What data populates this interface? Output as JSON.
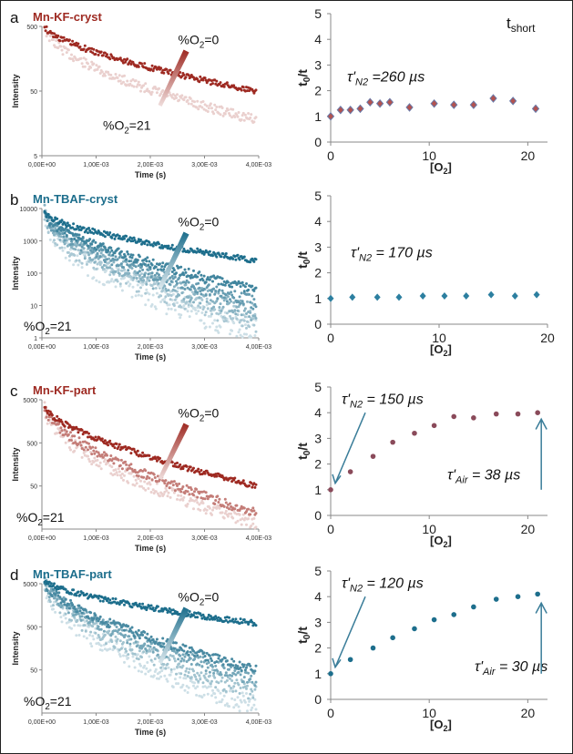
{
  "figure": {
    "panels": [
      {
        "letter": "a",
        "title": "Mn-KF-cryst",
        "color": "#9e2a22"
      },
      {
        "letter": "b",
        "title": "Mn-TBAF-cryst",
        "color": "#1d6e8c"
      },
      {
        "letter": "c",
        "title": "Mn-KF-part",
        "color": "#9e2a22"
      },
      {
        "letter": "d",
        "title": "Mn-TBAF-part",
        "color": "#1d6e8c"
      }
    ],
    "tshort_label": {
      "main": "t",
      "sub": "short"
    }
  },
  "chart_data": [
    {
      "type": "scatter",
      "panel": "a",
      "kind": "decay",
      "title": "Mn-KF-cryst",
      "xlabel": "Time (s)",
      "ylabel": "Intensity",
      "xticks": [
        "0,00E+00",
        "1,00E-03",
        "2,00E-03",
        "3,00E-03",
        "4,00E-03"
      ],
      "yticks": [
        "500",
        "50",
        "5"
      ],
      "log_min": 0.699,
      "log_max": 2.699,
      "annotation_top": "%O2=0",
      "annotation_bottom": "%O2=21",
      "curves": [
        {
          "name": "%O2=0",
          "start": 500,
          "end": 50
        },
        {
          "name": "%O2=21",
          "start": 520,
          "end": 18
        }
      ]
    },
    {
      "type": "scatter",
      "panel": "a",
      "kind": "ratio",
      "xlabel": "[O2]",
      "ylabel": "t0/t",
      "xlim": [
        0,
        22
      ],
      "ylim": [
        0,
        5
      ],
      "xticks": [
        0,
        10,
        20
      ],
      "yticks": [
        0,
        1,
        2,
        3,
        4,
        5
      ],
      "annotation": {
        "tau": "τ'",
        "sub": "N2",
        "value": " =260 µs"
      },
      "x": [
        0,
        1,
        2,
        3,
        4,
        5,
        6,
        8,
        10.5,
        12.5,
        14.5,
        16.5,
        18.5,
        20.8
      ],
      "y": [
        1.0,
        1.25,
        1.25,
        1.3,
        1.55,
        1.5,
        1.55,
        1.35,
        1.5,
        1.45,
        1.45,
        1.7,
        1.6,
        1.3
      ]
    },
    {
      "type": "scatter",
      "panel": "b",
      "kind": "decay",
      "title": "Mn-TBAF-cryst",
      "xlabel": "Time (s)",
      "ylabel": "Intensity",
      "xticks": [
        "0,00E+00",
        "1,00E-03",
        "2,00E-03",
        "3,00E-03",
        "4,00E-03"
      ],
      "yticks": [
        "10000",
        "1000",
        "100",
        "10",
        "1"
      ],
      "log_min": 0,
      "log_max": 4,
      "annotation_top": "%O2=0",
      "annotation_bottom": "%O2=21",
      "curves": [
        {
          "name": "%O2=0",
          "start": 7000,
          "end": 250
        },
        {
          "name": "curve-2",
          "start": 7000,
          "end": 30
        },
        {
          "name": "curve-3",
          "start": 7000,
          "end": 12
        },
        {
          "name": "curve-4",
          "start": 7000,
          "end": 6
        },
        {
          "name": "curve-5",
          "start": 7000,
          "end": 3
        },
        {
          "name": "%O2=21",
          "start": 7000,
          "end": 1.5
        }
      ]
    },
    {
      "type": "scatter",
      "panel": "b",
      "kind": "ratio",
      "xlabel": "[O2]",
      "ylabel": "t0/t",
      "xlim": [
        0,
        20
      ],
      "ylim": [
        0,
        5
      ],
      "xticks": [
        0,
        10,
        20
      ],
      "yticks": [
        0,
        1,
        2,
        3,
        4,
        5
      ],
      "annotation": {
        "tau": "τ'",
        "sub": "N2",
        "value": " = 170 µs"
      },
      "x": [
        0,
        2,
        4.3,
        6.3,
        8.5,
        10.5,
        12.5,
        14.8,
        17,
        19
      ],
      "y": [
        1.0,
        1.05,
        1.05,
        1.05,
        1.1,
        1.1,
        1.1,
        1.15,
        1.1,
        1.15
      ]
    },
    {
      "type": "scatter",
      "panel": "c",
      "kind": "decay",
      "title": "Mn-KF-part",
      "xlabel": "Time (s)",
      "ylabel": "Intensity",
      "xticks": [
        "0,00E+00",
        "1,00E-03",
        "2,00E-03",
        "3,00E-03",
        "4,00E-03"
      ],
      "yticks": [
        "5000",
        "500",
        "50"
      ],
      "log_min": 0.699,
      "log_max": 3.699,
      "annotation_top": "%O2=0",
      "annotation_bottom": "%O2=21",
      "curves": [
        {
          "name": "%O2=0",
          "start": 3500,
          "end": 50
        },
        {
          "name": "curve-2",
          "start": 3500,
          "end": 12
        },
        {
          "name": "%O2=21",
          "start": 3500,
          "end": 7
        }
      ]
    },
    {
      "type": "scatter",
      "panel": "c",
      "kind": "ratio",
      "xlabel": "[O2]",
      "ylabel": "t0/t",
      "xlim": [
        0,
        22
      ],
      "ylim": [
        0,
        5
      ],
      "xticks": [
        0,
        10,
        20
      ],
      "yticks": [
        0,
        1,
        2,
        3,
        4,
        5
      ],
      "annotation": {
        "tau": "τ'",
        "sub": "N2",
        "value": " = 150 µs"
      },
      "annotation2": {
        "tau": "τ'",
        "sub": "Air",
        "value": " = 38 µs"
      },
      "x": [
        0,
        2,
        4.3,
        6.3,
        8.5,
        10.5,
        12.5,
        14.5,
        16.8,
        19,
        21
      ],
      "y": [
        1.0,
        1.7,
        2.3,
        2.85,
        3.2,
        3.5,
        3.85,
        3.8,
        3.95,
        3.95,
        4.0
      ]
    },
    {
      "type": "scatter",
      "panel": "d",
      "kind": "decay",
      "title": "Mn-TBAF-part",
      "xlabel": "Time (s)",
      "ylabel": "Intensity",
      "xticks": [
        "0,00E+00",
        "1,00E-03",
        "2,00E-03",
        "3,00E-03",
        "4,00E-03"
      ],
      "yticks": [
        "5000",
        "500",
        "50"
      ],
      "log_min": 0.699,
      "log_max": 3.699,
      "annotation_top": "%O2=0",
      "annotation_bottom": "%O2=21",
      "curves": [
        {
          "name": "%O2=0",
          "start": 6000,
          "end": 600
        },
        {
          "name": "curve-2",
          "start": 6000,
          "end": 50
        },
        {
          "name": "curve-3",
          "start": 6000,
          "end": 30
        },
        {
          "name": "curve-4",
          "start": 6000,
          "end": 15
        },
        {
          "name": "%O2=21",
          "start": 6000,
          "end": 7
        }
      ]
    },
    {
      "type": "scatter",
      "panel": "d",
      "kind": "ratio",
      "xlabel": "[O2]",
      "ylabel": "t0/t",
      "xlim": [
        0,
        22
      ],
      "ylim": [
        0,
        5
      ],
      "xticks": [
        0,
        10,
        20
      ],
      "yticks": [
        0,
        1,
        2,
        3,
        4,
        5
      ],
      "annotation": {
        "tau": "τ'",
        "sub": "N2",
        "value": " = 120 µs"
      },
      "annotation2": {
        "tau": "τ'",
        "sub": "Air",
        "value": " = 30 µs"
      },
      "x": [
        0,
        2,
        4.3,
        6.3,
        8.5,
        10.5,
        12.5,
        14.5,
        16.8,
        19,
        21
      ],
      "y": [
        1.0,
        1.55,
        2.0,
        2.4,
        2.75,
        3.1,
        3.3,
        3.6,
        3.9,
        4.0,
        4.1
      ]
    }
  ]
}
